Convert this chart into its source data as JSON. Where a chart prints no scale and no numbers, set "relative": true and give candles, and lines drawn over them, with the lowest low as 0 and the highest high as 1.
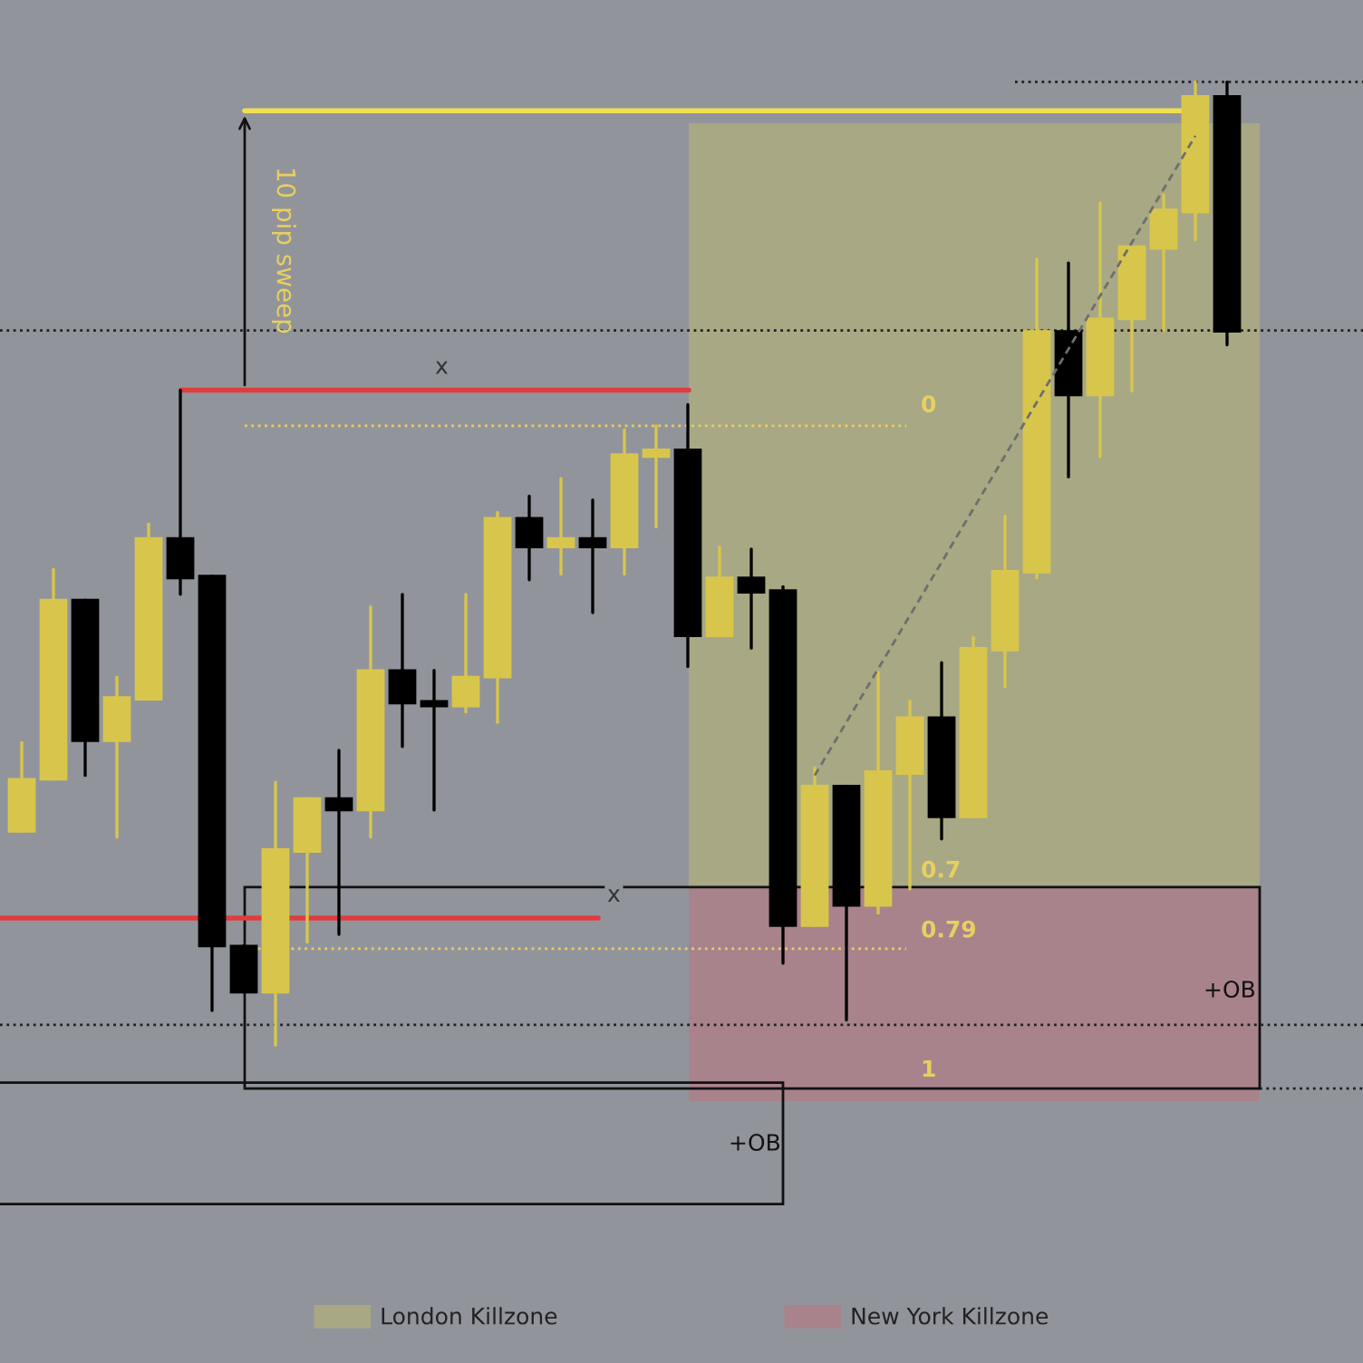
{
  "chart_data": {
    "type": "candlestick",
    "relative": true,
    "categories": [
      null,
      null,
      null,
      null,
      null,
      null,
      null,
      null,
      null,
      null,
      null,
      null,
      null,
      null,
      null,
      null,
      null,
      null,
      null,
      null,
      null,
      null,
      null,
      null,
      null,
      null,
      null,
      null,
      null,
      null,
      null,
      null,
      null,
      null,
      null,
      null,
      null,
      null,
      null
    ],
    "ohlc": [
      [
        0.222,
        0.314,
        0.222,
        0.276
      ],
      [
        0.276,
        0.494,
        0.276,
        0.462
      ],
      [
        0.462,
        0.462,
        0.28,
        0.316
      ],
      [
        0.316,
        0.382,
        0.216,
        0.361
      ],
      [
        0.359,
        0.541,
        0.359,
        0.526
      ],
      [
        0.526,
        0.68,
        0.468,
        0.485
      ],
      [
        0.487,
        0.487,
        0.036,
        0.103
      ],
      [
        0.103,
        0.103,
        0.055,
        0.055
      ],
      [
        0.055,
        0.273,
        0.0,
        0.203
      ],
      [
        0.201,
        0.256,
        0.107,
        0.256
      ],
      [
        0.256,
        0.306,
        0.115,
        0.244
      ],
      [
        0.244,
        0.455,
        0.216,
        0.389
      ],
      [
        0.389,
        0.468,
        0.31,
        0.355
      ],
      [
        0.357,
        0.389,
        0.244,
        0.352
      ],
      [
        0.352,
        0.468,
        0.346,
        0.382
      ],
      [
        0.382,
        0.553,
        0.335,
        0.547
      ],
      [
        0.547,
        0.57,
        0.483,
        0.517
      ],
      [
        0.517,
        0.588,
        0.489,
        0.526
      ],
      [
        0.526,
        0.566,
        0.449,
        0.517
      ],
      [
        0.517,
        0.639,
        0.489,
        0.613
      ],
      [
        0.611,
        0.643,
        0.538,
        0.618
      ],
      [
        0.618,
        0.665,
        0.393,
        0.425
      ],
      [
        0.425,
        0.517,
        0.425,
        0.485
      ],
      [
        0.485,
        0.515,
        0.412,
        0.47
      ],
      [
        0.472,
        0.476,
        0.085,
        0.124
      ],
      [
        0.124,
        0.288,
        0.124,
        0.269
      ],
      [
        0.269,
        0.269,
        0.026,
        0.145
      ],
      [
        0.145,
        0.387,
        0.137,
        0.284
      ],
      [
        0.282,
        0.357,
        0.162,
        0.34
      ],
      [
        0.34,
        0.397,
        0.214,
        0.237
      ],
      [
        0.237,
        0.423,
        0.237,
        0.412
      ],
      [
        0.41,
        0.549,
        0.372,
        0.492
      ],
      [
        0.491,
        0.816,
        0.485,
        0.741
      ],
      [
        0.741,
        0.812,
        0.59,
        0.675
      ],
      [
        0.675,
        0.874,
        0.611,
        0.754
      ],
      [
        0.754,
        0.829,
        0.679,
        0.829
      ],
      [
        0.827,
        0.883,
        0.742,
        0.867
      ],
      [
        0.865,
        1.0,
        0.836,
        0.985
      ],
      [
        0.985,
        1.0,
        0.727,
        0.741
      ]
    ],
    "colors": [
      "#d8c64c",
      "#d8c64c",
      "#000000",
      "#d8c64c",
      "#d8c64c",
      "#000000",
      "#000000",
      "#000000",
      "#d8c64c",
      "#d8c64c",
      "#000000",
      "#d8c64c",
      "#000000",
      "#000000",
      "#d8c64c",
      "#d8c64c",
      "#000000",
      "#d8c64c",
      "#000000",
      "#d8c64c",
      "#d8c64c",
      "#000000",
      "#d8c64c",
      "#000000",
      "#000000",
      "#d8c64c",
      "#000000",
      "#d8c64c",
      "#d8c64c",
      "#000000",
      "#d8c64c",
      "#d8c64c",
      "#d8c64c",
      "#000000",
      "#d8c64c",
      "#d8c64c",
      "#d8c64c",
      "#d8c64c",
      "#000000"
    ],
    "series": [
      {
        "type": "line",
        "color": "#6e6e6e",
        "line_style": "dashed",
        "values": [
          null,
          null,
          null,
          null,
          null,
          null,
          null,
          null,
          null,
          null,
          null,
          null,
          null,
          null,
          null,
          null,
          null,
          null,
          null,
          null,
          null,
          null,
          null,
          null,
          null,
          0.28,
          null,
          null,
          null,
          null,
          null,
          null,
          null,
          null,
          null,
          null,
          null,
          0.944,
          null
        ]
      }
    ],
    "ref_lines": [
      {
        "axis": "y",
        "value": 0.97,
        "color": "#f0e050",
        "line_style": "solid"
      },
      {
        "axis": "y",
        "value": 0.68,
        "label": "x",
        "color": "#e03c3c",
        "line_style": "solid"
      },
      {
        "axis": "y",
        "value": 0.132,
        "label": "x",
        "color": "#e03c3c",
        "line_style": "solid"
      },
      {
        "axis": "y",
        "value": 0.643,
        "color": "#e8d060",
        "line_style": "dotted"
      },
      {
        "axis": "y",
        "value": 0.1,
        "color": "#e8d060",
        "line_style": "dotted"
      },
      {
        "axis": "y",
        "value": 0.742,
        "color": "#202020",
        "line_style": "dotted"
      },
      {
        "axis": "y",
        "value": 0.021,
        "color": "#202020",
        "line_style": "dotted"
      },
      {
        "axis": "y",
        "value": 1.0,
        "color": "#202020",
        "line_style": "dotted"
      }
    ],
    "bands": [
      {
        "axis": "y",
        "from": 0.164,
        "to": 0.957,
        "label": "London Killzone",
        "color": "#a8a884"
      },
      {
        "axis": "y",
        "from": -0.058,
        "to": 0.164,
        "label": "New York Killzone",
        "color": "#a8838c"
      }
    ],
    "annotations": [
      "10 pip sweep",
      "+OB",
      "+OB",
      "0",
      "0.7",
      "0.79",
      "1"
    ],
    "legend": "bottom"
  }
}
